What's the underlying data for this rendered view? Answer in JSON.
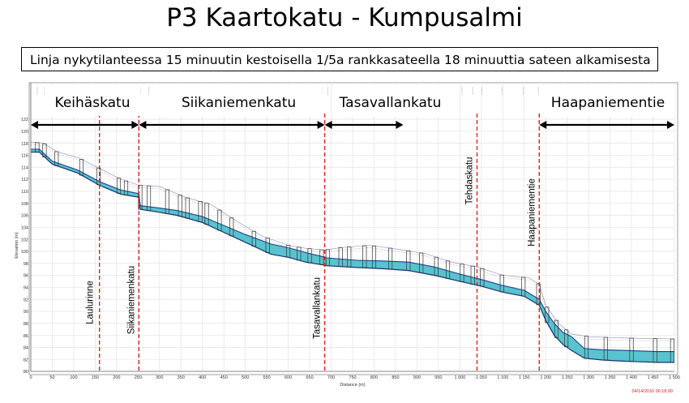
{
  "page": {
    "title": "P3 Kaartokatu - Kumpusalmi",
    "subtitle": "Linja nykytilanteessa 15 minuutin kestoisella 1/5a rankkasateella 18 minuuttia sateen alkamisesta"
  },
  "chart_data": {
    "type": "area",
    "xlabel": "Distance (m)",
    "ylabel": "Elevation (m)",
    "timestamp": "04/14/2016 00:18:00",
    "xlim": [
      0,
      1500
    ],
    "ylim": [
      80,
      122
    ],
    "x_ticks": [
      0,
      50,
      100,
      150,
      200,
      250,
      300,
      350,
      400,
      450,
      500,
      550,
      600,
      650,
      700,
      750,
      800,
      850,
      900,
      950,
      1000,
      1050,
      1100,
      1150,
      1200,
      1250,
      1300,
      1350,
      1400,
      1450,
      1500
    ],
    "x_tick_labels": [
      "0",
      "50",
      "100",
      "150",
      "200",
      "250",
      "300",
      "350",
      "400",
      "450",
      "500",
      "550",
      "600",
      "650",
      "700",
      "750",
      "800",
      "850",
      "900",
      "950",
      "1 000",
      "1 050",
      "1 100",
      "1 150",
      "1 200",
      "1 250",
      "1 300",
      "1 350",
      "1 400",
      "1 450",
      "1 500"
    ],
    "y_ticks": [
      80,
      82,
      84,
      86,
      88,
      90,
      92,
      94,
      96,
      98,
      100,
      102,
      104,
      106,
      108,
      110,
      112,
      114,
      116,
      118,
      120,
      122
    ],
    "grid": true,
    "street_sections": [
      {
        "label": "Keihäskatu",
        "start": 0,
        "end": 252
      },
      {
        "label": "Siikaniemenkatu",
        "start": 252,
        "end": 685
      },
      {
        "label": "Tasavallankatu",
        "start": 685,
        "end": 868
      },
      {
        "label": "Haapaniementie",
        "start": 1185,
        "end": 1500
      }
    ],
    "crossings": [
      {
        "label": "Laulurinne",
        "x": 160
      },
      {
        "label": "Siikaniemenkatu",
        "x": 252
      },
      {
        "label": "Tasavallankatu",
        "x": 685
      },
      {
        "label": "Tehdaskatu",
        "x": 1040
      },
      {
        "label": "Haapaniementie",
        "x": 1185
      }
    ],
    "series": [
      {
        "name": "pipe_invert",
        "x": [
          0,
          20,
          50,
          110,
          160,
          210,
          252,
          255,
          300,
          340,
          400,
          500,
          560,
          600,
          640,
          675,
          690,
          760,
          820,
          880,
          940,
          1000,
          1050,
          1100,
          1150,
          1185,
          1200,
          1220,
          1240,
          1260,
          1290,
          1330,
          1380,
          1420,
          1460,
          1500
        ],
        "values": [
          116.5,
          116.5,
          114.5,
          113.0,
          111.0,
          109.5,
          109.0,
          107.0,
          106.5,
          106.0,
          104.8,
          101.5,
          99.5,
          99.0,
          98.2,
          97.8,
          97.6,
          97.3,
          97.1,
          96.8,
          96.0,
          95.0,
          94.2,
          93.2,
          92.5,
          91.0,
          88.5,
          86.0,
          84.5,
          83.5,
          82.2,
          81.9,
          81.7,
          81.6,
          81.5,
          81.5
        ]
      },
      {
        "name": "water_level",
        "x": [
          0,
          20,
          50,
          110,
          160,
          210,
          252,
          255,
          300,
          340,
          400,
          500,
          560,
          600,
          640,
          675,
          690,
          760,
          820,
          880,
          940,
          1000,
          1050,
          1100,
          1150,
          1185,
          1200,
          1220,
          1240,
          1260,
          1290,
          1330,
          1380,
          1420,
          1460,
          1500
        ],
        "values": [
          117.0,
          117.0,
          115.0,
          113.5,
          111.6,
          110.2,
          109.6,
          107.6,
          107.2,
          106.8,
          105.8,
          102.8,
          101.2,
          100.6,
          99.8,
          99.2,
          98.9,
          98.5,
          98.4,
          98.2,
          97.4,
          96.2,
          95.3,
          94.3,
          93.5,
          92.0,
          90.0,
          88.0,
          86.5,
          85.8,
          83.8,
          83.6,
          83.5,
          83.4,
          83.3,
          83.3
        ]
      },
      {
        "name": "ground_level",
        "x": [
          0,
          30,
          60,
          110,
          160,
          210,
          252,
          300,
          360,
          420,
          480,
          540,
          600,
          640,
          685,
          720,
          790,
          860,
          920,
          980,
          1040,
          1100,
          1160,
          1185,
          1200,
          1230,
          1260,
          1300,
          1360,
          1420,
          1500
        ],
        "values": [
          118.2,
          118.0,
          116.6,
          115.6,
          113.8,
          112.0,
          111.0,
          110.8,
          109.0,
          107.8,
          105.0,
          102.5,
          101.0,
          100.5,
          100.2,
          100.6,
          101.0,
          100.3,
          99.6,
          98.2,
          97.4,
          96.0,
          95.6,
          94.5,
          91.0,
          88.0,
          86.2,
          85.8,
          85.6,
          85.5,
          85.4
        ]
      }
    ],
    "manholes": [
      15,
      32,
      60,
      118,
      158,
      205,
      222,
      255,
      275,
      318,
      348,
      365,
      395,
      410,
      440,
      468,
      520,
      552,
      600,
      625,
      650,
      678,
      692,
      722,
      742,
      778,
      800,
      838,
      880,
      910,
      945,
      972,
      1005,
      1030,
      1052,
      1098,
      1148,
      1183,
      1203,
      1225,
      1248,
      1295,
      1340,
      1400,
      1455,
      1495
    ]
  }
}
